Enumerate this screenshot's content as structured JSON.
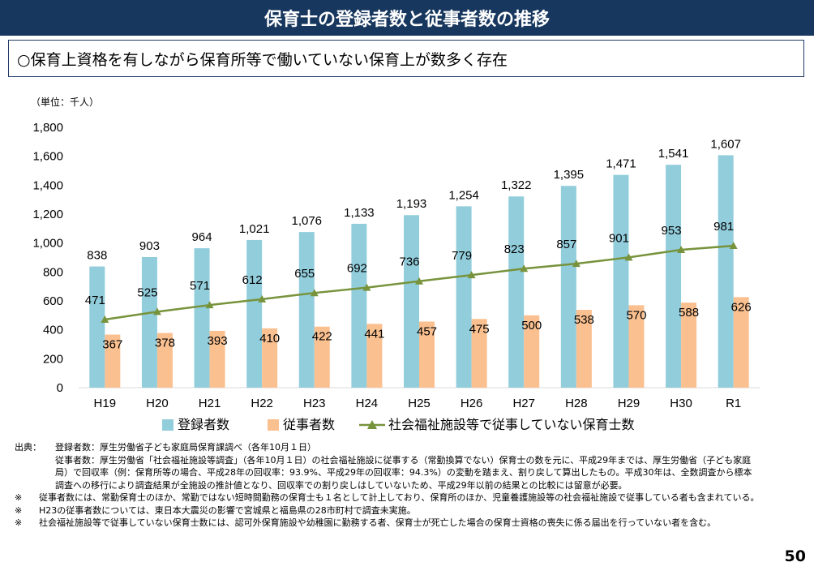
{
  "header": {
    "title": "保育士の登録者数と従事者数の推移",
    "subtitle": "○保育上資格を有しながら保育所等で働いていない保育上が数多く存在"
  },
  "chart_data": {
    "type": "bar",
    "unit_label": "（単位：千人）",
    "categories": [
      "H19",
      "H20",
      "H21",
      "H22",
      "H23",
      "H24",
      "H25",
      "H26",
      "H27",
      "H28",
      "H29",
      "H30",
      "R1"
    ],
    "ylim": [
      0,
      1800
    ],
    "yticks": [
      "0",
      "200",
      "400",
      "600",
      "800",
      "1,000",
      "1,200",
      "1,400",
      "1,600",
      "1,800"
    ],
    "grid": false,
    "legend_position": "bottom",
    "series": [
      {
        "name": "登録者数",
        "type": "bar",
        "color": "#92cddc",
        "values": [
          838,
          903,
          964,
          1021,
          1076,
          1133,
          1193,
          1254,
          1322,
          1395,
          1471,
          1541,
          1607
        ],
        "labels": [
          "838",
          "903",
          "964",
          "1,021",
          "1,076",
          "1,133",
          "1,193",
          "1,254",
          "1,322",
          "1,395",
          "1,471",
          "1,541",
          "1,607"
        ]
      },
      {
        "name": "従事者数",
        "type": "bar",
        "color": "#fac090",
        "values": [
          367,
          378,
          393,
          410,
          422,
          441,
          457,
          475,
          500,
          538,
          570,
          588,
          626
        ],
        "labels": [
          "367",
          "378",
          "393",
          "410",
          "422",
          "441",
          "457",
          "475",
          "500",
          "538",
          "570",
          "588",
          "626"
        ]
      },
      {
        "name": "社会福祉施設等で従事していない保育士数",
        "type": "line",
        "color": "#77933c",
        "values": [
          471,
          525,
          571,
          612,
          655,
          692,
          736,
          779,
          823,
          857,
          901,
          953,
          981
        ],
        "labels": [
          "471",
          "525",
          "571",
          "612",
          "655",
          "692",
          "736",
          "779",
          "823",
          "857",
          "901",
          "953",
          "981"
        ]
      }
    ]
  },
  "notes": [
    {
      "label": "出典：",
      "text": "登録者数：厚生労働省子ども家庭局保育課調べ（各年10月１日）"
    },
    {
      "label": "",
      "text": "従事者数：厚生労働省「社会福祉施設等調査」（各年10月１日）の社会福祉施設に従事する（常勤換算でない）保育士の数を元に、平成29年までは、厚生労働省（子ども家庭局）で回収率（例：保育所等の場合、平成28年の回収率：93.9%、平成29年の回収率：94.3%）の変動を踏まえ、割り戻して算出したもの。平成30年は、全数調査から標本調査への移行により調査結果が全施設の推計値となり、回収率での割り戻しはしていないため、平成29年以前の結果との比較には留意が必要。"
    },
    {
      "label": "※",
      "text": "従事者数には、常勤保育士のほか、常勤ではない短時間勤務の保育士も１名として計上しており、保育所のほか、児童養護施設等の社会福祉施設で従事している者も含まれている。"
    },
    {
      "label": "※",
      "text": "H23の従事者数については、東日本大震災の影響で宮城県と福島県の28市町村で調査未実施。"
    },
    {
      "label": "※",
      "text": "社会福祉施設等で従事していない保育士数には、認可外保育施設や幼稚園に勤務する者、保育士が死亡した場合の保育士資格の喪失に係る届出を行っていない者を含む。"
    }
  ],
  "page_number": "50"
}
